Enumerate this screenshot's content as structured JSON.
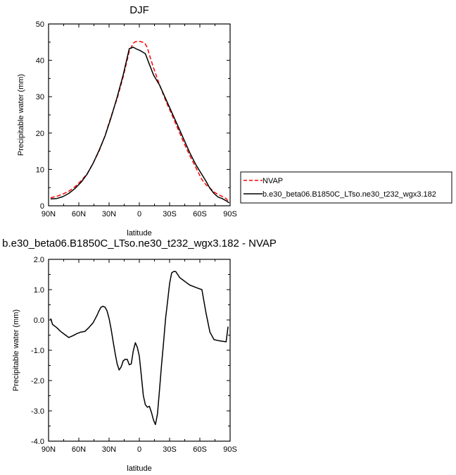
{
  "chart_data": [
    {
      "type": "line",
      "title": "DJF",
      "xlabel": "latitude",
      "ylabel": "Precipitable water (mm)",
      "xlim": [
        90,
        -90
      ],
      "ylim": [
        0,
        50
      ],
      "x_ticks": [
        90,
        60,
        30,
        0,
        -30,
        -60,
        -90
      ],
      "x_tick_labels": [
        "90N",
        "60N",
        "30N",
        "0",
        "30S",
        "60S",
        "90S"
      ],
      "y_ticks": [
        0,
        10,
        20,
        30,
        40,
        50
      ],
      "y_tick_labels": [
        "0",
        "10",
        "20",
        "30",
        "40",
        "50"
      ],
      "legend_position": "right",
      "grid": false,
      "series": [
        {
          "name": "NVAP",
          "color": "#ff0000",
          "dash": true,
          "x": [
            88,
            82,
            76,
            70,
            64,
            58,
            52,
            46,
            40,
            34,
            28,
            22,
            16,
            10,
            6,
            4,
            2,
            0,
            -2,
            -4,
            -6,
            -8,
            -10,
            -14,
            -20,
            -26,
            -32,
            -38,
            -44,
            -50,
            -56,
            -62,
            -66,
            -70,
            -74,
            -78,
            -82,
            -86,
            -89
          ],
          "y": [
            2.2,
            2.6,
            3.2,
            4.0,
            5.2,
            6.8,
            8.7,
            11.6,
            15.0,
            19.3,
            24.6,
            29.5,
            35.5,
            42.5,
            44.7,
            45.1,
            45.2,
            45.2,
            45.1,
            44.9,
            44.5,
            43.4,
            41.5,
            38.0,
            33.3,
            29.0,
            25.2,
            21.3,
            17.4,
            13.8,
            10.5,
            7.2,
            5.8,
            4.9,
            3.8,
            3.1,
            2.6,
            2.0,
            1.0
          ]
        },
        {
          "name": "b.e30_beta06.B1850C_LTso.ne30_t232_wgx3.182",
          "color": "#000000",
          "dash": false,
          "x": [
            88,
            82,
            76,
            70,
            64,
            58,
            52,
            46,
            40,
            34,
            28,
            22,
            16,
            10,
            6,
            4,
            2,
            0,
            -2,
            -6,
            -10,
            -14,
            -20,
            -26,
            -32,
            -38,
            -44,
            -50,
            -56,
            -62,
            -66,
            -70,
            -74,
            -78,
            -82,
            -86,
            -89
          ],
          "y": [
            1.9,
            2.0,
            2.5,
            3.4,
            4.7,
            6.4,
            8.6,
            11.6,
            15.2,
            19.2,
            24.3,
            29.9,
            36.0,
            43.2,
            43.6,
            43.3,
            43.0,
            42.8,
            42.5,
            41.8,
            38.9,
            36.0,
            33.2,
            29.5,
            25.8,
            22.1,
            18.3,
            14.6,
            11.3,
            8.6,
            6.8,
            4.8,
            3.4,
            2.4,
            2.0,
            1.4,
            0.8
          ]
        }
      ]
    },
    {
      "type": "line",
      "title": "b.e30_beta06.B1850C_LTso.ne30_t232_wgx3.182 - NVAP",
      "xlabel": "latitude",
      "ylabel": "Precipitable water (mm)",
      "xlim": [
        90,
        -90
      ],
      "ylim": [
        -4,
        2
      ],
      "x_ticks": [
        90,
        60,
        30,
        0,
        -30,
        -60,
        -90
      ],
      "x_tick_labels": [
        "90N",
        "60N",
        "30N",
        "0",
        "30S",
        "60S",
        "90S"
      ],
      "y_ticks": [
        -4,
        -3,
        -2,
        -1,
        0,
        1,
        2
      ],
      "y_tick_labels": [
        "-4.0",
        "-3.0",
        "-2.0",
        "-1.0",
        "0.0",
        "1.0",
        "2.0"
      ],
      "grid": false,
      "series": [
        {
          "color": "#000000",
          "x": [
            88,
            86,
            82,
            78,
            74,
            70,
            66,
            62,
            58,
            54,
            50,
            46,
            42,
            40,
            38,
            36,
            34,
            32,
            30,
            28,
            26,
            24,
            22,
            20,
            18,
            16,
            14,
            12,
            10,
            8,
            6,
            4,
            2,
            0,
            -2,
            -4,
            -6,
            -8,
            -10,
            -12,
            -14,
            -16,
            -18,
            -20,
            -22,
            -24,
            -26,
            -28,
            -30,
            -32,
            -34,
            -36,
            -38,
            -40,
            -42,
            -44,
            -46,
            -48,
            -50,
            -54,
            -58,
            -62,
            -66,
            -70,
            -74,
            -78,
            -82,
            -86,
            -88
          ],
          "y": [
            0.05,
            -0.15,
            -0.25,
            -0.38,
            -0.48,
            -0.58,
            -0.52,
            -0.45,
            -0.4,
            -0.38,
            -0.25,
            -0.1,
            0.15,
            0.3,
            0.42,
            0.45,
            0.42,
            0.3,
            0.05,
            -0.3,
            -0.7,
            -1.1,
            -1.45,
            -1.65,
            -1.55,
            -1.35,
            -1.3,
            -1.3,
            -1.48,
            -1.45,
            -1.02,
            -0.75,
            -0.9,
            -1.2,
            -1.85,
            -2.5,
            -2.8,
            -2.88,
            -2.85,
            -3.05,
            -3.3,
            -3.45,
            -3.1,
            -2.3,
            -1.5,
            -0.75,
            0.05,
            0.6,
            1.2,
            1.55,
            1.6,
            1.6,
            1.5,
            1.4,
            1.35,
            1.3,
            1.25,
            1.2,
            1.15,
            1.1,
            1.05,
            1.0,
            0.25,
            -0.4,
            -0.65,
            -0.68,
            -0.7,
            -0.72,
            -0.22
          ]
        }
      ]
    }
  ]
}
